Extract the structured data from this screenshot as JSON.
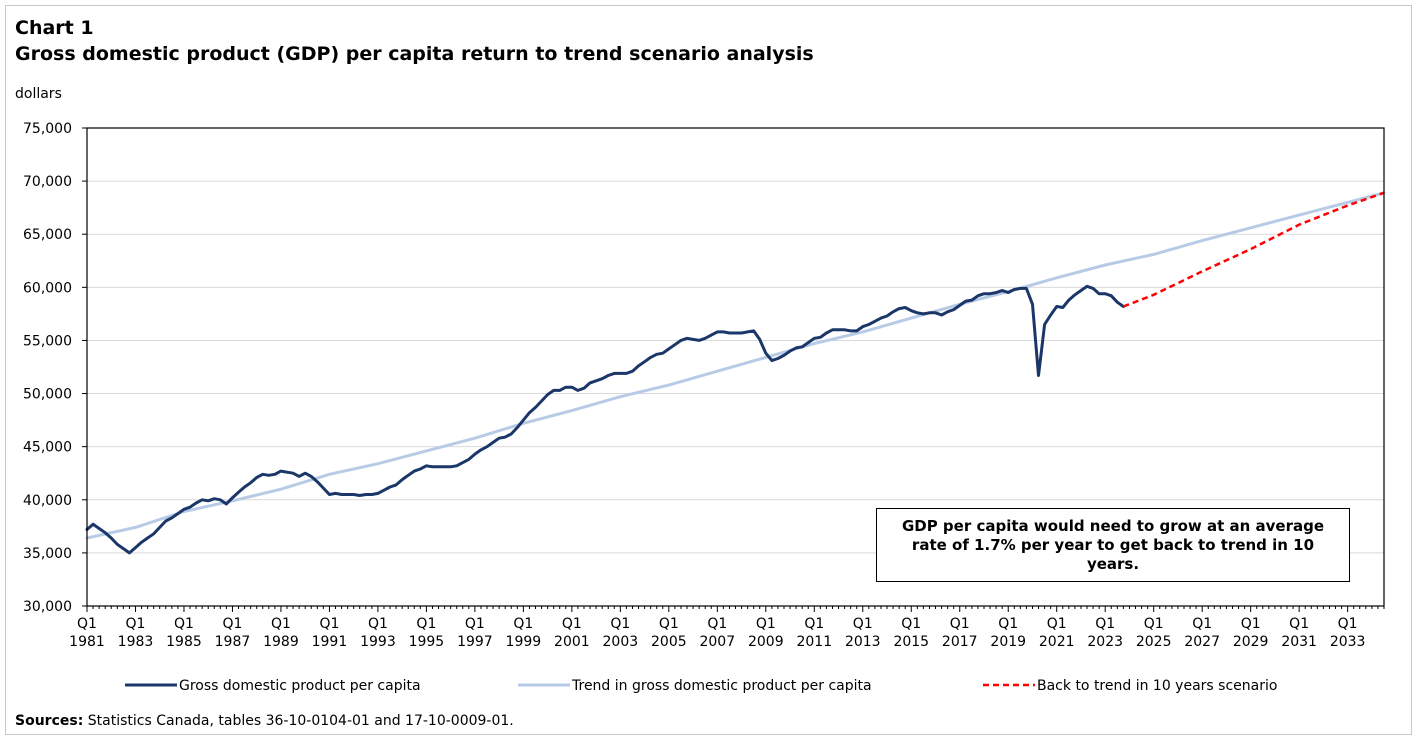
{
  "chart_data": {
    "type": "line",
    "label": "Chart 1",
    "title": "Gross domestic product (GDP) per capita return to trend scenario analysis",
    "ylabel": "dollars",
    "ylim": [
      30000,
      75000
    ],
    "yticks": [
      "30,000",
      "35,000",
      "40,000",
      "45,000",
      "50,000",
      "55,000",
      "60,000",
      "65,000",
      "70,000",
      "75,000"
    ],
    "xlim": [
      1981.0,
      2034.5
    ],
    "xticks": [
      {
        "q": "Q1",
        "year": "1981"
      },
      {
        "q": "Q1",
        "year": "1983"
      },
      {
        "q": "Q1",
        "year": "1985"
      },
      {
        "q": "Q1",
        "year": "1987"
      },
      {
        "q": "Q1",
        "year": "1989"
      },
      {
        "q": "Q1",
        "year": "1991"
      },
      {
        "q": "Q1",
        "year": "1993"
      },
      {
        "q": "Q1",
        "year": "1995"
      },
      {
        "q": "Q1",
        "year": "1997"
      },
      {
        "q": "Q1",
        "year": "1999"
      },
      {
        "q": "Q1",
        "year": "2001"
      },
      {
        "q": "Q1",
        "year": "2003"
      },
      {
        "q": "Q1",
        "year": "2005"
      },
      {
        "q": "Q1",
        "year": "2007"
      },
      {
        "q": "Q1",
        "year": "2009"
      },
      {
        "q": "Q1",
        "year": "2011"
      },
      {
        "q": "Q1",
        "year": "2013"
      },
      {
        "q": "Q1",
        "year": "2015"
      },
      {
        "q": "Q1",
        "year": "2017"
      },
      {
        "q": "Q1",
        "year": "2019"
      },
      {
        "q": "Q1",
        "year": "2021"
      },
      {
        "q": "Q1",
        "year": "2023"
      },
      {
        "q": "Q1",
        "year": "2025"
      },
      {
        "q": "Q1",
        "year": "2027"
      },
      {
        "q": "Q1",
        "year": "2029"
      },
      {
        "q": "Q1",
        "year": "2031"
      },
      {
        "q": "Q1",
        "year": "2033"
      }
    ],
    "grid": true,
    "legend_position": "bottom",
    "series": [
      {
        "name": "Gross domestic product per capita",
        "color": "#1b3668",
        "style": "solid",
        "points": [
          [
            1981.0,
            37200
          ],
          [
            1981.25,
            37700
          ],
          [
            1981.5,
            37300
          ],
          [
            1981.75,
            36900
          ],
          [
            1982.0,
            36400
          ],
          [
            1982.25,
            35800
          ],
          [
            1982.5,
            35400
          ],
          [
            1982.75,
            35000
          ],
          [
            1983.0,
            35500
          ],
          [
            1983.25,
            36000
          ],
          [
            1983.5,
            36400
          ],
          [
            1983.75,
            36800
          ],
          [
            1984.0,
            37400
          ],
          [
            1984.25,
            38000
          ],
          [
            1984.5,
            38300
          ],
          [
            1984.75,
            38700
          ],
          [
            1985.0,
            39100
          ],
          [
            1985.25,
            39300
          ],
          [
            1985.5,
            39700
          ],
          [
            1985.75,
            40000
          ],
          [
            1986.0,
            39900
          ],
          [
            1986.25,
            40100
          ],
          [
            1986.5,
            40000
          ],
          [
            1986.75,
            39600
          ],
          [
            1987.0,
            40200
          ],
          [
            1987.25,
            40700
          ],
          [
            1987.5,
            41200
          ],
          [
            1987.75,
            41600
          ],
          [
            1988.0,
            42100
          ],
          [
            1988.25,
            42400
          ],
          [
            1988.5,
            42300
          ],
          [
            1988.75,
            42400
          ],
          [
            1989.0,
            42700
          ],
          [
            1989.25,
            42600
          ],
          [
            1989.5,
            42500
          ],
          [
            1989.75,
            42200
          ],
          [
            1990.0,
            42500
          ],
          [
            1990.25,
            42200
          ],
          [
            1990.5,
            41700
          ],
          [
            1990.75,
            41100
          ],
          [
            1991.0,
            40500
          ],
          [
            1991.25,
            40600
          ],
          [
            1991.5,
            40500
          ],
          [
            1991.75,
            40500
          ],
          [
            1992.0,
            40500
          ],
          [
            1992.25,
            40400
          ],
          [
            1992.5,
            40500
          ],
          [
            1992.75,
            40500
          ],
          [
            1993.0,
            40600
          ],
          [
            1993.25,
            40900
          ],
          [
            1993.5,
            41200
          ],
          [
            1993.75,
            41400
          ],
          [
            1994.0,
            41900
          ],
          [
            1994.25,
            42300
          ],
          [
            1994.5,
            42700
          ],
          [
            1994.75,
            42900
          ],
          [
            1995.0,
            43200
          ],
          [
            1995.25,
            43100
          ],
          [
            1995.5,
            43100
          ],
          [
            1995.75,
            43100
          ],
          [
            1996.0,
            43100
          ],
          [
            1996.25,
            43200
          ],
          [
            1996.5,
            43500
          ],
          [
            1996.75,
            43800
          ],
          [
            1997.0,
            44300
          ],
          [
            1997.25,
            44700
          ],
          [
            1997.5,
            45000
          ],
          [
            1997.75,
            45400
          ],
          [
            1998.0,
            45800
          ],
          [
            1998.25,
            45900
          ],
          [
            1998.5,
            46200
          ],
          [
            1998.75,
            46800
          ],
          [
            1999.0,
            47500
          ],
          [
            1999.25,
            48200
          ],
          [
            1999.5,
            48700
          ],
          [
            1999.75,
            49300
          ],
          [
            2000.0,
            49900
          ],
          [
            2000.25,
            50300
          ],
          [
            2000.5,
            50300
          ],
          [
            2000.75,
            50600
          ],
          [
            2001.0,
            50600
          ],
          [
            2001.25,
            50300
          ],
          [
            2001.5,
            50500
          ],
          [
            2001.75,
            51000
          ],
          [
            2002.0,
            51200
          ],
          [
            2002.25,
            51400
          ],
          [
            2002.5,
            51700
          ],
          [
            2002.75,
            51900
          ],
          [
            2003.0,
            51900
          ],
          [
            2003.25,
            51900
          ],
          [
            2003.5,
            52100
          ],
          [
            2003.75,
            52600
          ],
          [
            2004.0,
            53000
          ],
          [
            2004.25,
            53400
          ],
          [
            2004.5,
            53700
          ],
          [
            2004.75,
            53800
          ],
          [
            2005.0,
            54200
          ],
          [
            2005.25,
            54600
          ],
          [
            2005.5,
            55000
          ],
          [
            2005.75,
            55200
          ],
          [
            2006.0,
            55100
          ],
          [
            2006.25,
            55000
          ],
          [
            2006.5,
            55200
          ],
          [
            2006.75,
            55500
          ],
          [
            2007.0,
            55800
          ],
          [
            2007.25,
            55800
          ],
          [
            2007.5,
            55700
          ],
          [
            2007.75,
            55700
          ],
          [
            2008.0,
            55700
          ],
          [
            2008.25,
            55800
          ],
          [
            2008.5,
            55900
          ],
          [
            2008.75,
            55100
          ],
          [
            2009.0,
            53800
          ],
          [
            2009.25,
            53100
          ],
          [
            2009.5,
            53300
          ],
          [
            2009.75,
            53600
          ],
          [
            2010.0,
            54000
          ],
          [
            2010.25,
            54300
          ],
          [
            2010.5,
            54400
          ],
          [
            2010.75,
            54800
          ],
          [
            2011.0,
            55200
          ],
          [
            2011.25,
            55300
          ],
          [
            2011.5,
            55700
          ],
          [
            2011.75,
            56000
          ],
          [
            2012.0,
            56000
          ],
          [
            2012.25,
            56000
          ],
          [
            2012.5,
            55900
          ],
          [
            2012.75,
            55900
          ],
          [
            2013.0,
            56300
          ],
          [
            2013.25,
            56500
          ],
          [
            2013.5,
            56800
          ],
          [
            2013.75,
            57100
          ],
          [
            2014.0,
            57300
          ],
          [
            2014.25,
            57700
          ],
          [
            2014.5,
            58000
          ],
          [
            2014.75,
            58100
          ],
          [
            2015.0,
            57800
          ],
          [
            2015.25,
            57600
          ],
          [
            2015.5,
            57500
          ],
          [
            2015.75,
            57600
          ],
          [
            2016.0,
            57600
          ],
          [
            2016.25,
            57400
          ],
          [
            2016.5,
            57700
          ],
          [
            2016.75,
            57900
          ],
          [
            2017.0,
            58300
          ],
          [
            2017.25,
            58700
          ],
          [
            2017.5,
            58800
          ],
          [
            2017.75,
            59200
          ],
          [
            2018.0,
            59400
          ],
          [
            2018.25,
            59400
          ],
          [
            2018.5,
            59500
          ],
          [
            2018.75,
            59700
          ],
          [
            2019.0,
            59500
          ],
          [
            2019.25,
            59800
          ],
          [
            2019.5,
            59900
          ],
          [
            2019.75,
            59900
          ],
          [
            2020.0,
            58400
          ],
          [
            2020.25,
            51700
          ],
          [
            2020.5,
            56500
          ],
          [
            2020.75,
            57400
          ],
          [
            2021.0,
            58200
          ],
          [
            2021.25,
            58100
          ],
          [
            2021.5,
            58800
          ],
          [
            2021.75,
            59300
          ],
          [
            2022.0,
            59700
          ],
          [
            2022.25,
            60100
          ],
          [
            2022.5,
            59900
          ],
          [
            2022.75,
            59400
          ],
          [
            2023.0,
            59400
          ],
          [
            2023.25,
            59200
          ],
          [
            2023.5,
            58600
          ],
          [
            2023.75,
            58200
          ]
        ]
      },
      {
        "name": "Trend in gross domestic product per capita",
        "color": "#b7cbe7",
        "style": "solid",
        "points": [
          [
            1981.0,
            36400
          ],
          [
            1983.0,
            37400
          ],
          [
            1985.0,
            38900
          ],
          [
            1987.0,
            39900
          ],
          [
            1989.0,
            41000
          ],
          [
            1991.0,
            42400
          ],
          [
            1993.0,
            43400
          ],
          [
            1995.0,
            44600
          ],
          [
            1997.0,
            45800
          ],
          [
            1999.0,
            47200
          ],
          [
            2001.0,
            48400
          ],
          [
            2003.0,
            49700
          ],
          [
            2005.0,
            50800
          ],
          [
            2007.0,
            52100
          ],
          [
            2009.0,
            53400
          ],
          [
            2011.0,
            54700
          ],
          [
            2013.0,
            55800
          ],
          [
            2015.0,
            57100
          ],
          [
            2017.0,
            58400
          ],
          [
            2019.0,
            59600
          ],
          [
            2021.0,
            60900
          ],
          [
            2023.0,
            62100
          ],
          [
            2025.0,
            63100
          ],
          [
            2027.0,
            64400
          ],
          [
            2029.0,
            65600
          ],
          [
            2031.0,
            66800
          ],
          [
            2033.0,
            68000
          ],
          [
            2034.5,
            68900
          ]
        ]
      },
      {
        "name": "Back to trend in 10 years scenario",
        "color": "#ff0000",
        "style": "dashed",
        "points": [
          [
            2023.75,
            58200
          ],
          [
            2025.0,
            59300
          ],
          [
            2027.0,
            61500
          ],
          [
            2029.0,
            63600
          ],
          [
            2031.0,
            65900
          ],
          [
            2033.0,
            67700
          ],
          [
            2034.5,
            68900
          ]
        ]
      }
    ]
  },
  "annotation": {
    "text": "GDP per capita would need to grow at an average rate of 1.7% per year to get back to trend in 10 years."
  },
  "sources": {
    "label": "Sources:",
    "text": "Statistics Canada, tables 36-10-0104-01 and 17-10-0009-01."
  }
}
